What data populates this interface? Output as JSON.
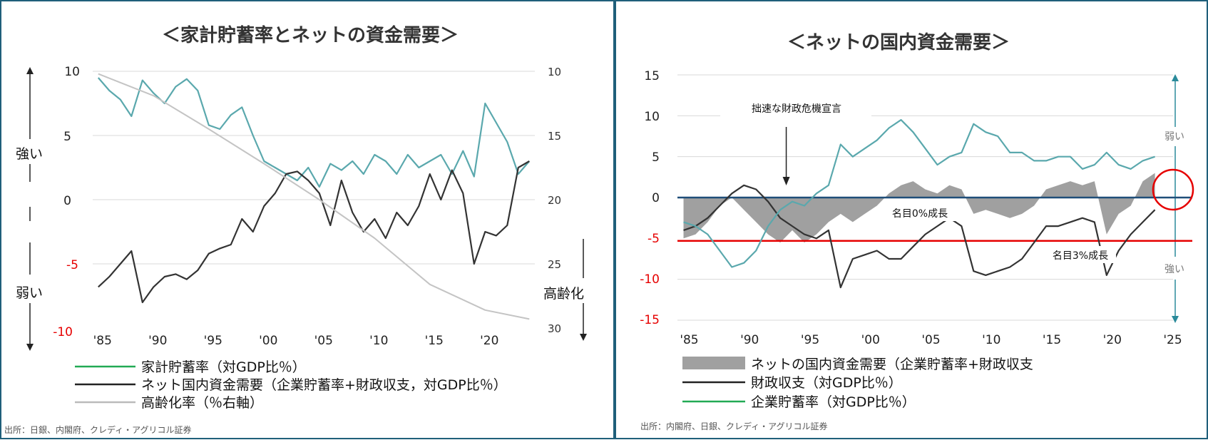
{
  "chart_data": [
    {
      "type": "line",
      "title": "＜家計貯蓄率とネットの資金需要＞",
      "x_tick_labels": [
        "'85",
        "'90",
        "'95",
        "'00",
        "'05",
        "'10",
        "'15",
        "'20"
      ],
      "x_range": [
        1984.5,
        2024.5
      ],
      "y_left": {
        "ticks": [
          "10",
          "5",
          "0",
          "-5",
          "-10"
        ],
        "range": [
          -10,
          10
        ]
      },
      "y_right": {
        "ticks": [
          "10",
          "15",
          "20",
          "25",
          "30"
        ],
        "range": [
          10,
          30
        ],
        "inverted": true
      },
      "side_labels": {
        "up": "強い",
        "down": "弱い",
        "right": "高齢化"
      },
      "series": [
        {
          "name": "家計貯蓄率（対GDP比％）",
          "color": "#5aa8ad",
          "axis": "left",
          "points": [
            [
              1985,
              9.5
            ],
            [
              1986,
              8.5
            ],
            [
              1987,
              7.8
            ],
            [
              1988,
              6.5
            ],
            [
              1989,
              9.3
            ],
            [
              1990,
              8.3
            ],
            [
              1991,
              7.5
            ],
            [
              1992,
              8.8
            ],
            [
              1993,
              9.4
            ],
            [
              1994,
              8.5
            ],
            [
              1995,
              5.8
            ],
            [
              1996,
              5.5
            ],
            [
              1997,
              6.6
            ],
            [
              1998,
              7.2
            ],
            [
              1999,
              5.0
            ],
            [
              2000,
              3.0
            ],
            [
              2001,
              2.5
            ],
            [
              2002,
              2.0
            ],
            [
              2003,
              1.5
            ],
            [
              2004,
              2.5
            ],
            [
              2005,
              1.0
            ],
            [
              2006,
              2.8
            ],
            [
              2007,
              2.3
            ],
            [
              2008,
              3.0
            ],
            [
              2009,
              2.0
            ],
            [
              2010,
              3.5
            ],
            [
              2011,
              3.0
            ],
            [
              2012,
              2.0
            ],
            [
              2013,
              3.5
            ],
            [
              2014,
              2.5
            ],
            [
              2015,
              3.0
            ],
            [
              2016,
              3.5
            ],
            [
              2017,
              2.0
            ],
            [
              2018,
              3.8
            ],
            [
              2019,
              1.8
            ],
            [
              2020,
              7.5
            ],
            [
              2021,
              6.0
            ],
            [
              2022,
              4.5
            ],
            [
              2023,
              2.0
            ],
            [
              2024,
              3.0
            ]
          ]
        },
        {
          "name": "ネット国内資金需要（企業貯蓄率+財政収支，対GDP比％）",
          "color": "#333333",
          "axis": "left",
          "points": [
            [
              1985,
              -6.8
            ],
            [
              1986,
              -6.0
            ],
            [
              1987,
              -5.0
            ],
            [
              1988,
              -4.0
            ],
            [
              1989,
              -8.0
            ],
            [
              1990,
              -6.8
            ],
            [
              1991,
              -6.0
            ],
            [
              1992,
              -5.8
            ],
            [
              1993,
              -6.2
            ],
            [
              1994,
              -5.5
            ],
            [
              1995,
              -4.2
            ],
            [
              1996,
              -3.8
            ],
            [
              1997,
              -3.5
            ],
            [
              1998,
              -1.5
            ],
            [
              1999,
              -2.5
            ],
            [
              2000,
              -0.5
            ],
            [
              2001,
              0.5
            ],
            [
              2002,
              2.0
            ],
            [
              2003,
              2.2
            ],
            [
              2004,
              1.5
            ],
            [
              2005,
              0.5
            ],
            [
              2006,
              -2.0
            ],
            [
              2007,
              1.5
            ],
            [
              2008,
              -1.0
            ],
            [
              2009,
              -2.5
            ],
            [
              2010,
              -1.5
            ],
            [
              2011,
              -3.0
            ],
            [
              2012,
              -1.0
            ],
            [
              2013,
              -2.0
            ],
            [
              2014,
              -0.5
            ],
            [
              2015,
              2.0
            ],
            [
              2016,
              0.0
            ],
            [
              2017,
              2.3
            ],
            [
              2018,
              0.5
            ],
            [
              2019,
              -5.0
            ],
            [
              2020,
              -2.5
            ],
            [
              2021,
              -2.8
            ],
            [
              2022,
              -2.0
            ],
            [
              2023,
              2.5
            ],
            [
              2024,
              3.0
            ]
          ]
        },
        {
          "name": "高齢化率（％右軸）",
          "color": "#c4c4c4",
          "axis": "right",
          "points": [
            [
              1985,
              10.2
            ],
            [
              1990,
              11.9
            ],
            [
              1995,
              14.5
            ],
            [
              2000,
              17.2
            ],
            [
              2005,
              20.0
            ],
            [
              2010,
              23.0
            ],
            [
              2015,
              26.6
            ],
            [
              2020,
              28.6
            ],
            [
              2024,
              29.3
            ]
          ]
        }
      ],
      "source": "出所：日銀、内閣府、クレディ・アグリコル証券"
    },
    {
      "type": "line",
      "title": "＜ネットの国内資金需要＞",
      "x_tick_labels": [
        "'85",
        "'90",
        "'95",
        "'00",
        "'05",
        "'10",
        "'15",
        "'20",
        "'25"
      ],
      "x_range": [
        1984.5,
        2025.5
      ],
      "y_left": {
        "ticks": [
          "15",
          "10",
          "5",
          "0",
          "-5",
          "-10",
          "-15"
        ],
        "range": [
          -15,
          15
        ]
      },
      "side_labels": {
        "up": "弱い",
        "down": "強い"
      },
      "annotations": [
        {
          "text": "拙速な財政危機宣言",
          "year": 1993.5
        },
        {
          "text": "名目0%成長",
          "value": 0
        },
        {
          "text": "名目3%成長",
          "value": -5
        }
      ],
      "reference_lines": [
        {
          "label": "名目0%成長",
          "value": 0,
          "color": "#1f4e79"
        },
        {
          "label": "名目3%成長",
          "value": -5.3,
          "color": "#e60000"
        }
      ],
      "series": [
        {
          "name": "ネットの国内資金需要（企業貯蓄率+財政収支",
          "color": "#a0a0a0",
          "kind": "area",
          "points": [
            [
              1985,
              -5.0
            ],
            [
              1986,
              -4.5
            ],
            [
              1987,
              -3.0
            ],
            [
              1988,
              -1.0
            ],
            [
              1989,
              0.0
            ],
            [
              1990,
              -1.5
            ],
            [
              1991,
              -3.0
            ],
            [
              1992,
              -4.5
            ],
            [
              1993,
              -5.5
            ],
            [
              1994,
              -4.0
            ],
            [
              1995,
              -5.5
            ],
            [
              1996,
              -4.5
            ],
            [
              1997,
              -3.0
            ],
            [
              1998,
              -2.0
            ],
            [
              1999,
              -3.0
            ],
            [
              2000,
              -2.0
            ],
            [
              2001,
              -1.0
            ],
            [
              2002,
              0.5
            ],
            [
              2003,
              1.5
            ],
            [
              2004,
              2.0
            ],
            [
              2005,
              1.0
            ],
            [
              2006,
              0.5
            ],
            [
              2007,
              1.5
            ],
            [
              2008,
              1.0
            ],
            [
              2009,
              -2.0
            ],
            [
              2010,
              -1.5
            ],
            [
              2011,
              -2.0
            ],
            [
              2012,
              -2.5
            ],
            [
              2013,
              -2.0
            ],
            [
              2014,
              -1.0
            ],
            [
              2015,
              1.0
            ],
            [
              2016,
              1.5
            ],
            [
              2017,
              2.0
            ],
            [
              2018,
              1.5
            ],
            [
              2019,
              2.0
            ],
            [
              2020,
              -4.5
            ],
            [
              2021,
              -2.0
            ],
            [
              2022,
              -1.0
            ],
            [
              2023,
              2.0
            ],
            [
              2024,
              3.0
            ]
          ]
        },
        {
          "name": "財政収支（対GDP比％）",
          "color": "#333333",
          "points": [
            [
              1985,
              -4.0
            ],
            [
              1986,
              -3.5
            ],
            [
              1987,
              -2.5
            ],
            [
              1988,
              -1.0
            ],
            [
              1989,
              0.5
            ],
            [
              1990,
              1.5
            ],
            [
              1991,
              1.0
            ],
            [
              1992,
              -0.5
            ],
            [
              1993,
              -2.5
            ],
            [
              1994,
              -3.5
            ],
            [
              1995,
              -4.5
            ],
            [
              1996,
              -5.0
            ],
            [
              1997,
              -4.0
            ],
            [
              1998,
              -11.0
            ],
            [
              1999,
              -7.5
            ],
            [
              2000,
              -7.0
            ],
            [
              2001,
              -6.5
            ],
            [
              2002,
              -7.5
            ],
            [
              2003,
              -7.5
            ],
            [
              2004,
              -6.0
            ],
            [
              2005,
              -4.5
            ],
            [
              2006,
              -3.5
            ],
            [
              2007,
              -2.5
            ],
            [
              2008,
              -3.5
            ],
            [
              2009,
              -9.0
            ],
            [
              2010,
              -9.5
            ],
            [
              2011,
              -9.0
            ],
            [
              2012,
              -8.5
            ],
            [
              2013,
              -7.5
            ],
            [
              2014,
              -5.5
            ],
            [
              2015,
              -3.5
            ],
            [
              2016,
              -3.5
            ],
            [
              2017,
              -3.0
            ],
            [
              2018,
              -2.5
            ],
            [
              2019,
              -3.0
            ],
            [
              2020,
              -9.5
            ],
            [
              2021,
              -6.5
            ],
            [
              2022,
              -4.5
            ],
            [
              2023,
              -3.0
            ],
            [
              2024,
              -1.5
            ]
          ]
        },
        {
          "name": "企業貯蓄率（対GDP比％）",
          "color": "#5aa8ad",
          "points": [
            [
              1985,
              -3.0
            ],
            [
              1986,
              -3.5
            ],
            [
              1987,
              -4.5
            ],
            [
              1988,
              -6.5
            ],
            [
              1989,
              -8.5
            ],
            [
              1990,
              -8.0
            ],
            [
              1991,
              -6.5
            ],
            [
              1992,
              -3.5
            ],
            [
              1993,
              -1.5
            ],
            [
              1994,
              -0.5
            ],
            [
              1995,
              -1.0
            ],
            [
              1996,
              0.5
            ],
            [
              1997,
              1.5
            ],
            [
              1998,
              6.5
            ],
            [
              1999,
              5.0
            ],
            [
              2000,
              6.0
            ],
            [
              2001,
              7.0
            ],
            [
              2002,
              8.5
            ],
            [
              2003,
              9.5
            ],
            [
              2004,
              8.0
            ],
            [
              2005,
              6.0
            ],
            [
              2006,
              4.0
            ],
            [
              2007,
              5.0
            ],
            [
              2008,
              5.5
            ],
            [
              2009,
              9.0
            ],
            [
              2010,
              8.0
            ],
            [
              2011,
              7.5
            ],
            [
              2012,
              5.5
            ],
            [
              2013,
              5.5
            ],
            [
              2014,
              4.5
            ],
            [
              2015,
              4.5
            ],
            [
              2016,
              5.0
            ],
            [
              2017,
              5.0
            ],
            [
              2018,
              3.5
            ],
            [
              2019,
              4.0
            ],
            [
              2020,
              5.5
            ],
            [
              2021,
              4.0
            ],
            [
              2022,
              3.5
            ],
            [
              2023,
              4.5
            ],
            [
              2024,
              5.0
            ]
          ]
        }
      ],
      "source": "出所：内閣府、日銀、クレディ・アグリコル証券"
    }
  ]
}
